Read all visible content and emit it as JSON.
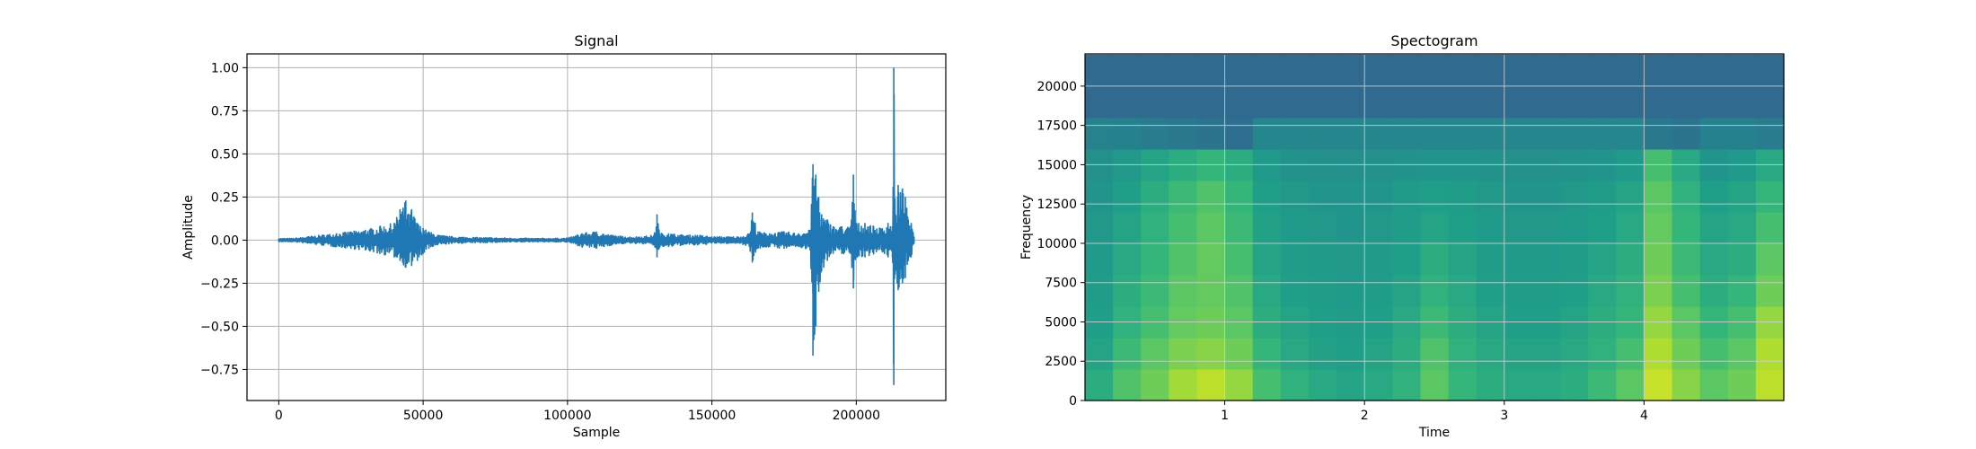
{
  "chart_data": [
    {
      "type": "line",
      "title": "Signal",
      "xlabel": "Sample",
      "ylabel": "Amplitude",
      "xlim": [
        -11000,
        231000
      ],
      "ylim": [
        -0.93,
        1.08
      ],
      "xticks": [
        0,
        50000,
        100000,
        150000,
        200000
      ],
      "xtick_labels": [
        "0",
        "50000",
        "100000",
        "150000",
        "200000"
      ],
      "yticks": [
        -0.75,
        -0.5,
        -0.25,
        0.0,
        0.25,
        0.5,
        0.75,
        1.0
      ],
      "ytick_labels": [
        "−0.75",
        "−0.50",
        "−0.25",
        "0.00",
        "0.25",
        "0.50",
        "0.75",
        "1.00"
      ],
      "grid": true,
      "color": "#1f77b4",
      "series": [
        {
          "x": [
            0,
            5000,
            10000,
            15000,
            20000,
            25000,
            30000,
            35000,
            40000,
            42000,
            44000,
            45000,
            46000,
            48000,
            50000,
            52000,
            55000,
            60000,
            70000,
            80000,
            90000,
            100000,
            105000,
            110000,
            115000,
            120000,
            125000,
            130000,
            131000,
            132000,
            135000,
            140000,
            145000,
            150000,
            155000,
            160000,
            163000,
            164000,
            166000,
            170000,
            175000,
            180000,
            184000,
            185000,
            186000,
            187000,
            188000,
            190000,
            192000,
            195000,
            198000,
            199000,
            200000,
            203000,
            206000,
            209000,
            211000,
            212500,
            213000,
            213500,
            214500,
            216000,
            217000,
            218000,
            219000,
            220000
          ],
          "upper": [
            0.01,
            0.01,
            0.02,
            0.03,
            0.04,
            0.05,
            0.06,
            0.08,
            0.1,
            0.18,
            0.23,
            0.15,
            0.18,
            0.1,
            0.07,
            0.05,
            0.03,
            0.02,
            0.015,
            0.012,
            0.01,
            0.012,
            0.04,
            0.05,
            0.03,
            0.02,
            0.02,
            0.03,
            0.15,
            0.04,
            0.04,
            0.03,
            0.03,
            0.02,
            0.02,
            0.02,
            0.04,
            0.16,
            0.05,
            0.04,
            0.05,
            0.04,
            0.06,
            0.44,
            0.38,
            0.25,
            0.15,
            0.12,
            0.08,
            0.08,
            0.08,
            0.38,
            0.1,
            0.1,
            0.08,
            0.07,
            0.1,
            0.08,
            1.0,
            0.15,
            0.32,
            0.3,
            0.25,
            0.12,
            0.1,
            0.02
          ],
          "lower": [
            -0.01,
            -0.01,
            -0.02,
            -0.03,
            -0.04,
            -0.05,
            -0.06,
            -0.08,
            -0.1,
            -0.12,
            -0.16,
            -0.13,
            -0.15,
            -0.12,
            -0.08,
            -0.05,
            -0.03,
            -0.02,
            -0.015,
            -0.012,
            -0.01,
            -0.012,
            -0.04,
            -0.05,
            -0.03,
            -0.02,
            -0.02,
            -0.03,
            -0.1,
            -0.04,
            -0.04,
            -0.03,
            -0.03,
            -0.02,
            -0.02,
            -0.02,
            -0.04,
            -0.13,
            -0.05,
            -0.04,
            -0.05,
            -0.04,
            -0.06,
            -0.67,
            -0.5,
            -0.3,
            -0.18,
            -0.12,
            -0.08,
            -0.08,
            -0.08,
            -0.28,
            -0.1,
            -0.1,
            -0.08,
            -0.07,
            -0.1,
            -0.1,
            -0.84,
            -0.2,
            -0.29,
            -0.25,
            -0.22,
            -0.12,
            -0.1,
            -0.02
          ]
        }
      ]
    },
    {
      "type": "heatmap",
      "title": "Spectogram",
      "xlabel": "Time",
      "ylabel": "Frequency",
      "xlim": [
        0.0,
        5.0
      ],
      "ylim": [
        0,
        22050
      ],
      "xticks": [
        1,
        2,
        3,
        4
      ],
      "xtick_labels": [
        "1",
        "2",
        "3",
        "4"
      ],
      "yticks": [
        0,
        2500,
        5000,
        7500,
        10000,
        12500,
        15000,
        17500,
        20000
      ],
      "ytick_labels": [
        "0",
        "2500",
        "5000",
        "7500",
        "10000",
        "12500",
        "15000",
        "17500",
        "20000"
      ],
      "grid": true,
      "colormap": "viridis",
      "time_bins": [
        0.1,
        0.3,
        0.5,
        0.7,
        0.9,
        1.1,
        1.3,
        1.5,
        1.7,
        1.9,
        2.1,
        2.3,
        2.5,
        2.7,
        2.9,
        3.1,
        3.3,
        3.5,
        3.7,
        3.9,
        4.1,
        4.3,
        4.5,
        4.7,
        4.9
      ],
      "freq_bins": [
        1000,
        3000,
        5000,
        7000,
        9000,
        11000,
        13000,
        15000,
        17000,
        19000,
        21000
      ],
      "values": [
        [
          0.62,
          0.72,
          0.78,
          0.86,
          0.9,
          0.84,
          0.7,
          0.64,
          0.6,
          0.58,
          0.6,
          0.64,
          0.74,
          0.66,
          0.62,
          0.6,
          0.6,
          0.62,
          0.68,
          0.74,
          0.92,
          0.82,
          0.74,
          0.78,
          0.9
        ],
        [
          0.58,
          0.68,
          0.74,
          0.8,
          0.82,
          0.78,
          0.66,
          0.6,
          0.57,
          0.56,
          0.58,
          0.62,
          0.72,
          0.64,
          0.6,
          0.58,
          0.58,
          0.6,
          0.64,
          0.7,
          0.88,
          0.78,
          0.7,
          0.74,
          0.88
        ],
        [
          0.56,
          0.64,
          0.7,
          0.76,
          0.78,
          0.74,
          0.62,
          0.58,
          0.56,
          0.55,
          0.56,
          0.6,
          0.68,
          0.62,
          0.58,
          0.56,
          0.56,
          0.58,
          0.62,
          0.66,
          0.84,
          0.74,
          0.66,
          0.7,
          0.84
        ],
        [
          0.55,
          0.62,
          0.68,
          0.74,
          0.76,
          0.72,
          0.6,
          0.56,
          0.55,
          0.54,
          0.55,
          0.58,
          0.64,
          0.6,
          0.56,
          0.55,
          0.55,
          0.56,
          0.6,
          0.64,
          0.8,
          0.7,
          0.62,
          0.66,
          0.78
        ],
        [
          0.54,
          0.6,
          0.66,
          0.72,
          0.76,
          0.7,
          0.58,
          0.55,
          0.54,
          0.53,
          0.54,
          0.56,
          0.62,
          0.58,
          0.55,
          0.54,
          0.54,
          0.55,
          0.58,
          0.62,
          0.78,
          0.68,
          0.6,
          0.62,
          0.74
        ],
        [
          0.53,
          0.58,
          0.64,
          0.7,
          0.74,
          0.68,
          0.57,
          0.54,
          0.53,
          0.52,
          0.53,
          0.55,
          0.58,
          0.56,
          0.54,
          0.53,
          0.53,
          0.54,
          0.56,
          0.6,
          0.76,
          0.66,
          0.58,
          0.6,
          0.7
        ],
        [
          0.52,
          0.56,
          0.62,
          0.68,
          0.72,
          0.66,
          0.56,
          0.53,
          0.52,
          0.52,
          0.52,
          0.54,
          0.56,
          0.55,
          0.53,
          0.52,
          0.52,
          0.53,
          0.55,
          0.58,
          0.74,
          0.64,
          0.56,
          0.58,
          0.66
        ],
        [
          0.5,
          0.53,
          0.58,
          0.62,
          0.66,
          0.62,
          0.54,
          0.51,
          0.5,
          0.5,
          0.5,
          0.51,
          0.52,
          0.52,
          0.51,
          0.5,
          0.5,
          0.51,
          0.52,
          0.54,
          0.7,
          0.6,
          0.52,
          0.54,
          0.6
        ],
        [
          0.45,
          0.44,
          0.42,
          0.4,
          0.38,
          0.36,
          0.46,
          0.46,
          0.46,
          0.46,
          0.46,
          0.46,
          0.46,
          0.46,
          0.46,
          0.46,
          0.46,
          0.46,
          0.46,
          0.46,
          0.4,
          0.38,
          0.44,
          0.44,
          0.42
        ],
        [
          0.34,
          0.34,
          0.34,
          0.34,
          0.34,
          0.34,
          0.34,
          0.34,
          0.34,
          0.34,
          0.34,
          0.34,
          0.34,
          0.34,
          0.34,
          0.34,
          0.34,
          0.34,
          0.34,
          0.34,
          0.34,
          0.34,
          0.34,
          0.34,
          0.34
        ],
        [
          0.34,
          0.34,
          0.34,
          0.34,
          0.34,
          0.34,
          0.34,
          0.34,
          0.34,
          0.34,
          0.34,
          0.34,
          0.34,
          0.34,
          0.34,
          0.34,
          0.34,
          0.34,
          0.34,
          0.34,
          0.34,
          0.34,
          0.34,
          0.34,
          0.34
        ]
      ]
    }
  ]
}
